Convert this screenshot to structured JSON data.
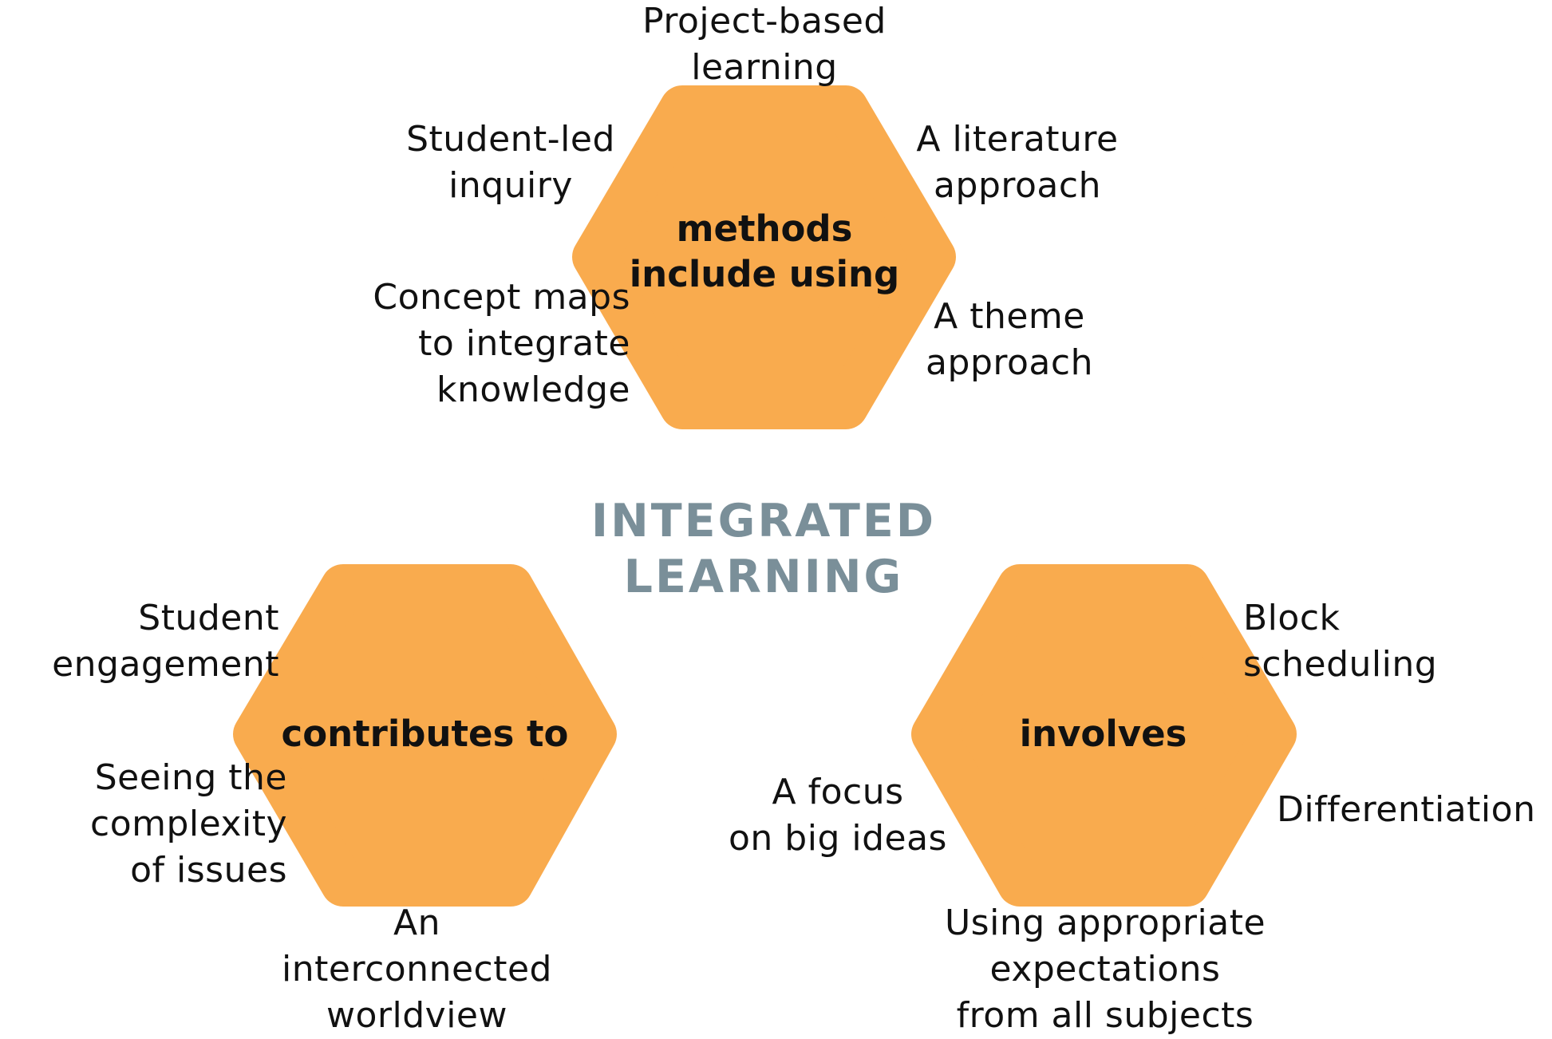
{
  "colors": {
    "hexagon_fill": "#F9AB4E",
    "title_color": "#7A8F99",
    "text_color": "#111111"
  },
  "center_title": "INTEGRATED\nLEARNING",
  "hexagons": {
    "methods": {
      "label": "methods\ninclude using",
      "items": {
        "project_based": "Project-based\nlearning",
        "student_led": "Student-led\ninquiry",
        "literature": "A literature\napproach",
        "concept_maps": "Concept maps\nto integrate\nknowledge",
        "theme": "A theme\napproach"
      }
    },
    "contributes": {
      "label": "contributes to",
      "items": {
        "engagement": "Student\nengagement",
        "complexity": "Seeing the\ncomplexity\nof issues",
        "worldview": "An\ninterconnected\nworldview"
      }
    },
    "involves": {
      "label": "involves",
      "items": {
        "block": "Block\nscheduling",
        "differentiation": "Differentiation",
        "big_ideas": "A focus\non big ideas",
        "expectations": "Using appropriate\nexpectations\nfrom all subjects"
      }
    }
  }
}
